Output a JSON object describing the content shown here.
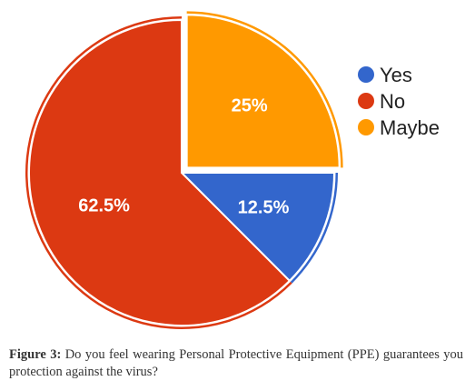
{
  "chart_data": {
    "type": "pie",
    "title": "",
    "slices": [
      {
        "label": "Yes",
        "value": 12.5,
        "display": "12.5%",
        "color": "#3366cc"
      },
      {
        "label": "No",
        "value": 62.5,
        "display": "62.5%",
        "color": "#dc3912"
      },
      {
        "label": "Maybe",
        "value": 25,
        "display": "25%",
        "color": "#ff9900"
      }
    ],
    "legend_placement": "right",
    "exploded_slice": "Maybe"
  },
  "caption": {
    "label": "Figure 3:",
    "text": "Do you feel wearing Personal Protective Equipment (PPE) guarantees you protection against the virus?"
  }
}
